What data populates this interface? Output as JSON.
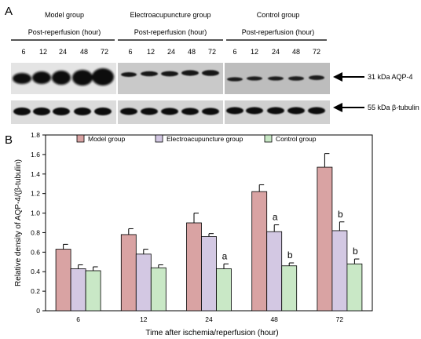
{
  "panel_a": {
    "letter": "A",
    "groups": [
      {
        "title": "Model group",
        "subtitle": "Post-reperfusion (hour)",
        "lanes": [
          "6",
          "12",
          "24",
          "48",
          "72"
        ]
      },
      {
        "title": "Electroacupuncture group",
        "subtitle": "Post-reperfusion (hour)",
        "lanes": [
          "6",
          "12",
          "24",
          "48",
          "72"
        ]
      },
      {
        "title": "Control group",
        "subtitle": "Post-reperfusion (hour)",
        "lanes": [
          "6",
          "12",
          "24",
          "48",
          "72"
        ]
      }
    ],
    "aqp4_label": "31 kDa AQP-4",
    "tubulin_label": "55 kDa β-tubulin"
  },
  "panel_b": {
    "letter": "B"
  },
  "chart_data": {
    "type": "bar",
    "categories": [
      "6",
      "12",
      "24",
      "48",
      "72"
    ],
    "series": [
      {
        "name": "Model group",
        "color": "#d9a3a3",
        "values": [
          0.63,
          0.78,
          0.9,
          1.22,
          1.47
        ],
        "errors": [
          0.05,
          0.06,
          0.1,
          0.07,
          0.14
        ],
        "annotations": [
          "",
          "",
          "",
          "",
          ""
        ]
      },
      {
        "name": "Electroacupuncture group",
        "color": "#d3c8e3",
        "values": [
          0.43,
          0.58,
          0.76,
          0.81,
          0.82
        ],
        "errors": [
          0.04,
          0.05,
          0.03,
          0.07,
          0.09
        ],
        "annotations": [
          "",
          "",
          "",
          "a",
          "b"
        ]
      },
      {
        "name": "Control group",
        "color": "#c9e8c6",
        "values": [
          0.41,
          0.44,
          0.43,
          0.46,
          0.48
        ],
        "errors": [
          0.04,
          0.03,
          0.05,
          0.03,
          0.05
        ],
        "annotations": [
          "",
          "",
          "a",
          "b",
          "b"
        ]
      }
    ],
    "xlabel": "Time after ischemia/reperfusion (hour)",
    "ylabel": "Relative density of AQP-4/(β-tubulin)",
    "ylim": [
      0,
      1.8
    ],
    "yticks": [
      "0",
      "0.2",
      "0.4",
      "0.6",
      "0.8",
      "1.0",
      "1.2",
      "1.4",
      "1.6",
      "1.8"
    ],
    "grid": false,
    "legend": "top"
  }
}
